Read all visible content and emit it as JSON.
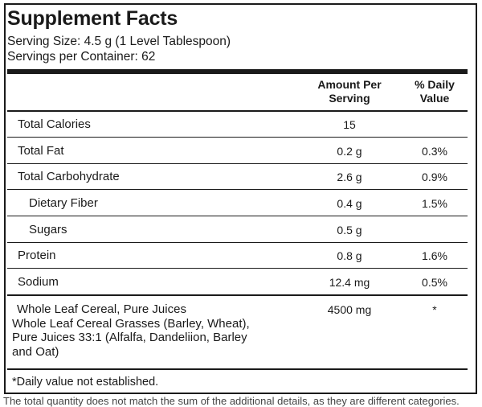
{
  "label": {
    "title": "Supplement Facts",
    "serving_size": "Serving Size: 4.5 g (1 Level Tablespoon)",
    "servings_per_container": "Servings per Container: 62",
    "col_amount": "Amount Per Serving",
    "col_amount_l1": "Amount Per",
    "col_amount_l2": "Serving",
    "col_daily": "% Daily Value",
    "col_daily_l1": "% Daily",
    "col_daily_l2": "Value",
    "rows": [
      {
        "name": "Total Calories",
        "amount": "15",
        "daily": ""
      },
      {
        "name": "Total Fat",
        "amount": "0.2 g",
        "daily": "0.3%"
      },
      {
        "name": "Total Carbohydrate",
        "amount": "2.6 g",
        "daily": "0.9%"
      },
      {
        "name": "Dietary Fiber",
        "amount": "0.4 g",
        "daily": "1.5%"
      },
      {
        "name": "Sugars",
        "amount": "0.5 g",
        "daily": ""
      },
      {
        "name": "Protein",
        "amount": "0.8 g",
        "daily": "1.6%"
      },
      {
        "name": "Sodium",
        "amount": "12.4 mg",
        "daily": "0.5%"
      }
    ],
    "blend": {
      "name": "Whole Leaf Cereal, Pure Juices",
      "description": "Whole Leaf Cereal Grasses (Barley, Wheat), Pure Juices 33:1 (Alfalfa, Dandeliion, Barley and Oat)",
      "desc_line1": "Whole Leaf Cereal Grasses (Barley, Wheat),",
      "desc_line2": "Pure Juices 33:1 (Alfalfa, Dandeliion, Barley",
      "desc_line3": "and Oat)",
      "amount": "4500 mg",
      "daily": "*"
    },
    "footnote": "*Daily value not established."
  },
  "bottom_text": "The total quantity does not match the sum of the additional details, as they are different categories."
}
